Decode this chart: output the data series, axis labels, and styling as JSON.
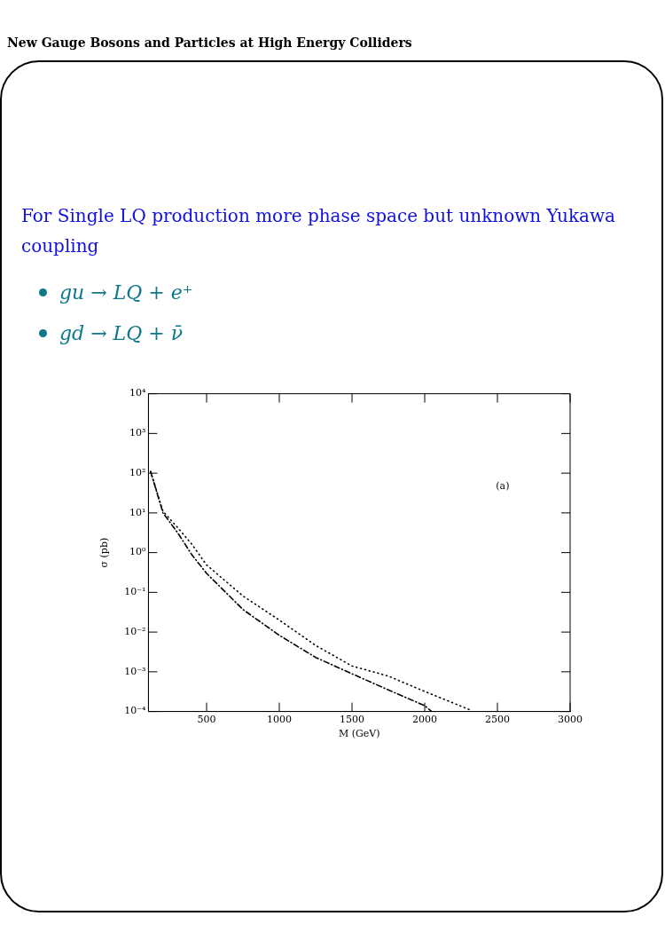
{
  "chart_data": {
    "type": "line",
    "title": "New Gauge Bosons and Particles at High Energy Colliders",
    "subtitle": "For Single LQ production more phase space but unknown Yukawa coupling",
    "annotations": [
      "gu → LQ + e⁺",
      "gd → LQ + ν̄",
      "(a)"
    ],
    "xlabel": "M (GeV)",
    "ylabel": "σ (pb)",
    "xlim": [
      100,
      3000
    ],
    "xticks": [
      500,
      1000,
      1500,
      2000,
      2500,
      3000
    ],
    "ylim": [
      0.0001,
      10000
    ],
    "yticks": [
      {
        "value": 0.0001,
        "label": "10⁻⁴"
      },
      {
        "value": 0.001,
        "label": "10⁻³"
      },
      {
        "value": 0.01,
        "label": "10⁻²"
      },
      {
        "value": 0.1,
        "label": "10⁻¹"
      },
      {
        "value": 1,
        "label": "10⁰"
      },
      {
        "value": 10,
        "label": "10¹"
      },
      {
        "value": 100,
        "label": "10²"
      },
      {
        "value": 1000,
        "label": "10³"
      },
      {
        "value": 10000,
        "label": "10⁴"
      }
    ],
    "log": "y",
    "grid": false,
    "legend": false,
    "marker": "none",
    "series": [
      {
        "color": "#000000",
        "line_style": "dotted",
        "x": [
          115,
          200,
          300,
          400,
          500,
          750,
          1000,
          1250,
          1500,
          1750,
          2000,
          2312
        ],
        "values": [
          110,
          11,
          4.3,
          1.6,
          0.49,
          0.081,
          0.02,
          0.0046,
          0.0014,
          0.00078,
          0.00032,
          0.00011
        ]
      },
      {
        "color": "#000000",
        "line_style": "dashed",
        "x": [
          115,
          200,
          300,
          400,
          500,
          750,
          1000,
          1250,
          1500,
          1750,
          2000,
          2048
        ],
        "values": [
          110,
          10,
          3.2,
          0.87,
          0.3,
          0.037,
          0.0083,
          0.0023,
          0.00089,
          0.00035,
          0.00014,
          0.0001
        ]
      }
    ]
  }
}
